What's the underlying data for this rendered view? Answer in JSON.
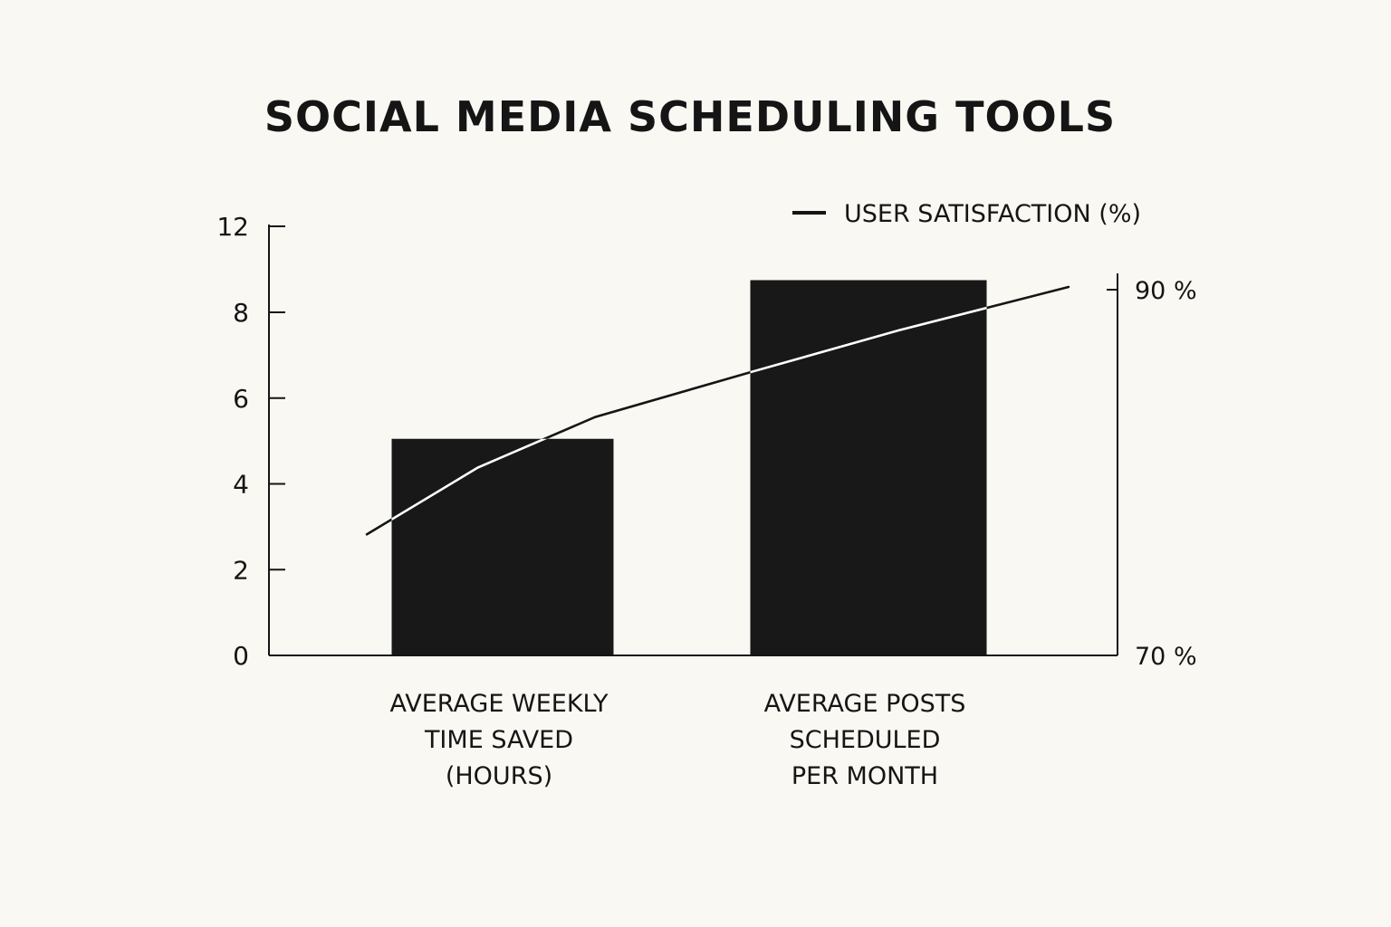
{
  "chart_data": {
    "type": "bar",
    "title": "SOCIAL MEDIA SCHEDULING TOOLS",
    "categories": [
      [
        "AVERAGE WEEKLY",
        "TIME SAVED",
        "(HOURS)"
      ],
      [
        "AVERAGE POSTS",
        "SCHEDULED",
        "PER MONTH"
      ]
    ],
    "series": [
      {
        "type": "bar",
        "values": [
          5.05,
          8.75
        ],
        "axis": "left"
      },
      {
        "type": "line",
        "name": "USER SATISFACTION (%)",
        "axis": "right",
        "x": [
          0.3,
          0.64,
          1.0,
          1.46,
          1.93,
          2.45
        ],
        "values": [
          76.7,
          80.4,
          83.2,
          85.6,
          88.0,
          90.4
        ]
      }
    ],
    "y_left": {
      "ylim": [
        0,
        12
      ],
      "ticks": [
        "0",
        "2",
        "4",
        "6",
        "8",
        "12"
      ],
      "tick_values": [
        0,
        2,
        4,
        6,
        8,
        12
      ]
    },
    "y_right": {
      "ylim": [
        70,
        91
      ],
      "ticks": [
        "70 %",
        "90 %"
      ],
      "tick_values": [
        70,
        90
      ]
    },
    "x_range": [
      0,
      2.6
    ],
    "legend": {
      "label": "USER SATISFACTION (%)",
      "position": "top-right"
    },
    "grid": false,
    "colors": {
      "bar": "#181818",
      "line_over_bar": "#ffffff",
      "line": "#151515",
      "background": "#faf8f3"
    }
  }
}
